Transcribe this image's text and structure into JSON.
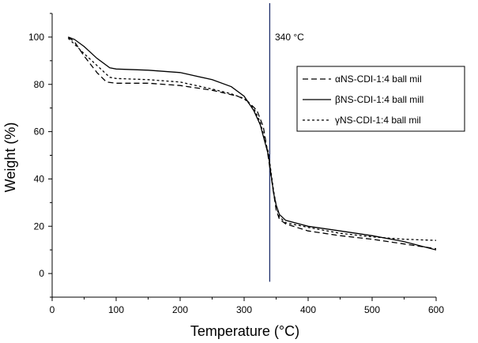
{
  "chart_data": {
    "type": "line",
    "title": "",
    "xlabel": "Temperature (°C)",
    "ylabel": "Weight (%)",
    "xlim": [
      0,
      600
    ],
    "ylim": [
      -10,
      110
    ],
    "xticks": [
      0,
      100,
      200,
      300,
      400,
      500,
      600
    ],
    "yticks": [
      0,
      20,
      40,
      60,
      80,
      100
    ],
    "grid": false,
    "legend_position": "top-right",
    "vline": {
      "x": 340,
      "label": "340 °C",
      "color": "#1f2f6b"
    },
    "series": [
      {
        "name": "αNS-CDI-1:4 ball mil",
        "style": "dashed",
        "x": [
          25,
          35,
          50,
          70,
          85,
          100,
          150,
          200,
          250,
          290,
          305,
          320,
          330,
          335,
          340,
          345,
          350,
          355,
          365,
          400,
          450,
          500,
          550,
          600
        ],
        "y": [
          100,
          98,
          92,
          85,
          81,
          80.5,
          80.5,
          79.5,
          77.5,
          75,
          73,
          69,
          62,
          54,
          45,
          36,
          27,
          23,
          21,
          18,
          16,
          14.5,
          12.5,
          10.5
        ]
      },
      {
        "name": "βNS-CDI-1:4 ball mill",
        "style": "solid",
        "x": [
          25,
          35,
          50,
          70,
          90,
          100,
          150,
          200,
          250,
          280,
          300,
          315,
          325,
          332,
          338,
          342,
          346,
          350,
          355,
          365,
          400,
          450,
          500,
          550,
          600
        ],
        "y": [
          100,
          99,
          96,
          91,
          87,
          86.5,
          86,
          85,
          82,
          79,
          75,
          69,
          63,
          56,
          50,
          42,
          34,
          29,
          25,
          22.5,
          20,
          18,
          16,
          13.5,
          10
        ]
      },
      {
        "name": "γNS-CDI-1:4 ball mil",
        "style": "dotted",
        "x": [
          25,
          35,
          50,
          70,
          90,
          100,
          150,
          200,
          250,
          280,
          300,
          315,
          325,
          332,
          338,
          342,
          346,
          350,
          355,
          365,
          400,
          450,
          500,
          550,
          600
        ],
        "y": [
          99.5,
          97,
          93,
          88,
          83,
          82.5,
          82,
          81,
          78,
          76,
          74,
          70,
          64,
          57,
          51,
          43,
          35,
          29,
          24,
          21.5,
          19.5,
          17,
          15.5,
          14.5,
          14
        ]
      }
    ]
  }
}
